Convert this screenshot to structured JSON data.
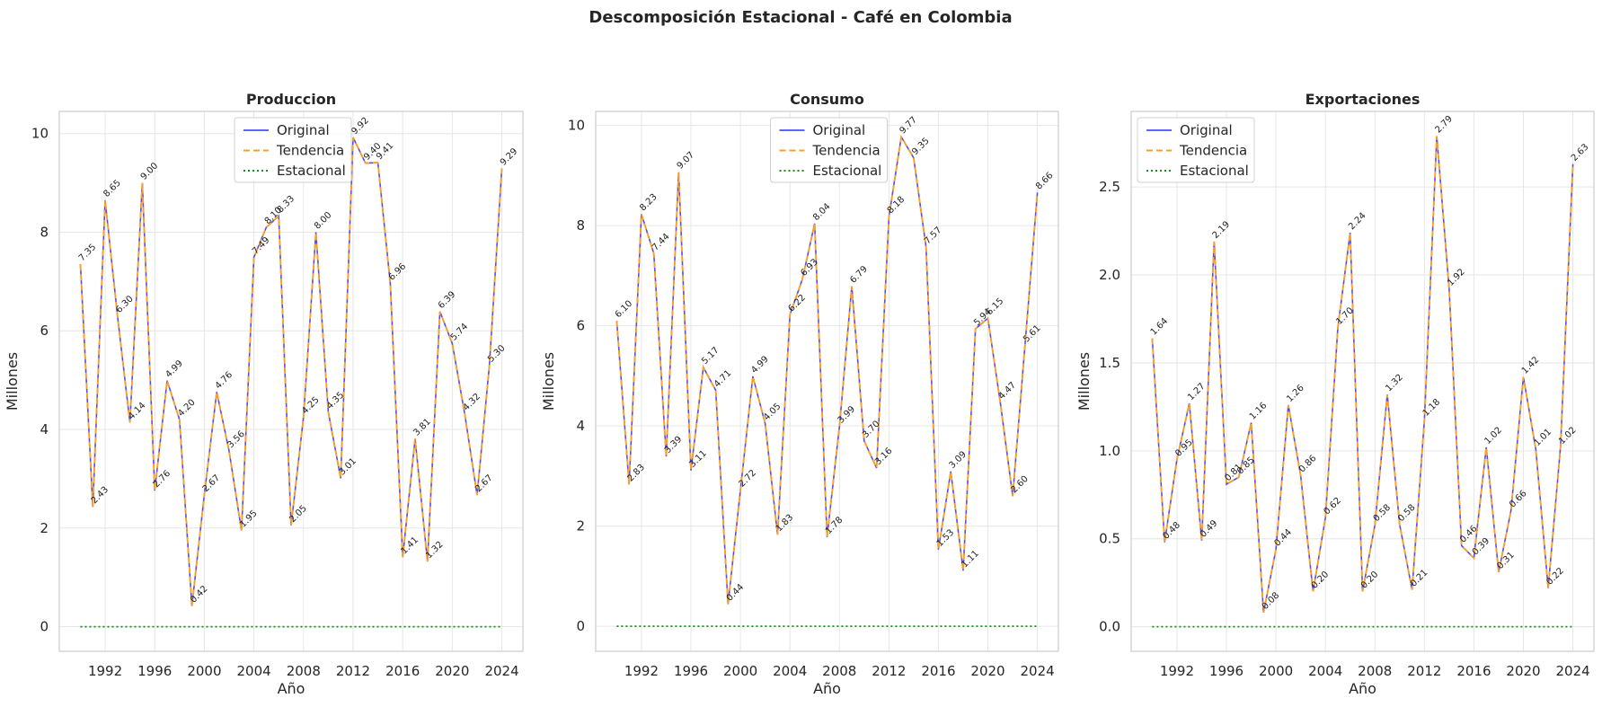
{
  "suptitle": "Descomposición Estacional - Café en Colombia",
  "colors": {
    "original": "#4d4dff",
    "tendencia": "#ff9f1c",
    "estacional": "#1a8c1a",
    "grid": "#e6e6e6",
    "spine": "#cccccc",
    "text": "#262626"
  },
  "chart_data": [
    {
      "type": "line",
      "title": "Produccion",
      "xlabel": "Año",
      "ylabel": "Millones",
      "x": [
        1990,
        1991,
        1992,
        1993,
        1994,
        1995,
        1996,
        1997,
        1998,
        1999,
        2000,
        2001,
        2002,
        2003,
        2004,
        2005,
        2006,
        2007,
        2008,
        2009,
        2010,
        2011,
        2012,
        2013,
        2014,
        2015,
        2016,
        2017,
        2018,
        2019,
        2020,
        2021,
        2022,
        2023,
        2024
      ],
      "xticks": [
        1992,
        1996,
        2000,
        2004,
        2008,
        2012,
        2016,
        2020,
        2024
      ],
      "yticks": [
        0,
        2,
        4,
        6,
        8,
        10
      ],
      "ytick_labels": [
        "0",
        "2",
        "4",
        "6",
        "8",
        "10"
      ],
      "ylim": [
        -0.5,
        10.45
      ],
      "legend": "upper center",
      "series": [
        {
          "name": "Original",
          "values": [
            7.35,
            2.43,
            8.65,
            6.3,
            4.14,
            9.0,
            2.76,
            4.99,
            4.2,
            0.42,
            2.67,
            4.76,
            3.56,
            1.95,
            7.49,
            8.1,
            8.33,
            2.05,
            4.25,
            8.0,
            4.35,
            3.01,
            9.92,
            9.4,
            9.41,
            6.96,
            1.41,
            3.81,
            1.32,
            6.39,
            5.74,
            4.32,
            2.67,
            5.3,
            9.29
          ]
        },
        {
          "name": "Tendencia",
          "values": [
            7.35,
            2.43,
            8.65,
            6.3,
            4.14,
            9.0,
            2.76,
            4.99,
            4.2,
            0.42,
            2.67,
            4.76,
            3.56,
            1.95,
            7.49,
            8.1,
            8.33,
            2.05,
            4.25,
            8.0,
            4.35,
            3.01,
            9.92,
            9.4,
            9.41,
            6.96,
            1.41,
            3.81,
            1.32,
            6.39,
            5.74,
            4.32,
            2.67,
            5.3,
            9.29
          ]
        },
        {
          "name": "Estacional",
          "values": [
            0,
            0,
            0,
            0,
            0,
            0,
            0,
            0,
            0,
            0,
            0,
            0,
            0,
            0,
            0,
            0,
            0,
            0,
            0,
            0,
            0,
            0,
            0,
            0,
            0,
            0,
            0,
            0,
            0,
            0,
            0,
            0,
            0,
            0,
            0
          ]
        }
      ],
      "labels": [
        "7.35",
        "2.43",
        "8.65",
        "6.30",
        "4.14",
        "9.00",
        "2.76",
        "4.99",
        "4.20",
        "0.42",
        "2.67",
        "4.76",
        "3.56",
        "1.95",
        "7.49",
        "8.10",
        "8.33",
        "2.05",
        "4.25",
        "8.00",
        "4.35",
        "3.01",
        "9.92",
        "9.40",
        "9.41",
        "6.96",
        "1.41",
        "3.81",
        "1.32",
        "6.39",
        "5.74",
        "4.32",
        "2.67",
        "5.30",
        "9.29"
      ]
    },
    {
      "type": "line",
      "title": "Consumo",
      "xlabel": "Año",
      "ylabel": "Millones",
      "x": [
        1990,
        1991,
        1992,
        1993,
        1994,
        1995,
        1996,
        1997,
        1998,
        1999,
        2000,
        2001,
        2002,
        2003,
        2004,
        2005,
        2006,
        2007,
        2008,
        2009,
        2010,
        2011,
        2012,
        2013,
        2014,
        2015,
        2016,
        2017,
        2018,
        2019,
        2020,
        2021,
        2022,
        2023,
        2024
      ],
      "xticks": [
        1992,
        1996,
        2000,
        2004,
        2008,
        2012,
        2016,
        2020,
        2024
      ],
      "yticks": [
        0,
        2,
        4,
        6,
        8,
        10
      ],
      "ytick_labels": [
        "0",
        "2",
        "4",
        "6",
        "8",
        "10"
      ],
      "ylim": [
        -0.5,
        10.28
      ],
      "legend": "upper center",
      "series": [
        {
          "name": "Original",
          "values": [
            6.1,
            2.83,
            8.23,
            7.44,
            3.39,
            9.07,
            3.11,
            5.17,
            4.71,
            0.44,
            2.72,
            4.99,
            4.05,
            1.83,
            6.22,
            6.93,
            8.04,
            1.78,
            3.99,
            6.79,
            3.7,
            3.16,
            8.18,
            9.77,
            9.35,
            7.57,
            1.53,
            3.09,
            1.11,
            5.94,
            6.15,
            4.47,
            2.6,
            5.61,
            8.66
          ]
        },
        {
          "name": "Tendencia",
          "values": [
            6.1,
            2.83,
            8.23,
            7.44,
            3.39,
            9.07,
            3.11,
            5.17,
            4.71,
            0.44,
            2.72,
            4.99,
            4.05,
            1.83,
            6.22,
            6.93,
            8.04,
            1.78,
            3.99,
            6.79,
            3.7,
            3.16,
            8.18,
            9.77,
            9.35,
            7.57,
            1.53,
            3.09,
            1.11,
            5.94,
            6.15,
            4.47,
            2.6,
            5.61,
            8.66
          ]
        },
        {
          "name": "Estacional",
          "values": [
            0,
            0,
            0,
            0,
            0,
            0,
            0,
            0,
            0,
            0,
            0,
            0,
            0,
            0,
            0,
            0,
            0,
            0,
            0,
            0,
            0,
            0,
            0,
            0,
            0,
            0,
            0,
            0,
            0,
            0,
            0,
            0,
            0,
            0,
            0
          ]
        }
      ],
      "labels": [
        "6.10",
        "2.83",
        "8.23",
        "7.44",
        "3.39",
        "9.07",
        "3.11",
        "5.17",
        "4.71",
        "0.44",
        "2.72",
        "4.99",
        "4.05",
        "1.83",
        "6.22",
        "6.93",
        "8.04",
        "1.78",
        "3.99",
        "6.79",
        "3.70",
        "3.16",
        "8.18",
        "9.77",
        "9.35",
        "7.57",
        "1.53",
        "3.09",
        "1.11",
        "5.94",
        "6.15",
        "4.47",
        "2.60",
        "5.61",
        "8.66"
      ]
    },
    {
      "type": "line",
      "title": "Exportaciones",
      "xlabel": "Año",
      "ylabel": "Millones",
      "x": [
        1990,
        1991,
        1992,
        1993,
        1994,
        1995,
        1996,
        1997,
        1998,
        1999,
        2000,
        2001,
        2002,
        2003,
        2004,
        2005,
        2006,
        2007,
        2008,
        2009,
        2010,
        2011,
        2012,
        2013,
        2014,
        2015,
        2016,
        2017,
        2018,
        2019,
        2020,
        2021,
        2022,
        2023,
        2024
      ],
      "xticks": [
        1992,
        1996,
        2000,
        2004,
        2008,
        2012,
        2016,
        2020,
        2024
      ],
      "yticks": [
        0,
        0.5,
        1.0,
        1.5,
        2.0,
        2.5
      ],
      "ytick_labels": [
        "0.0",
        "0.5",
        "1.0",
        "1.5",
        "2.0",
        "2.5"
      ],
      "ylim": [
        -0.14,
        2.93
      ],
      "legend": "upper left",
      "series": [
        {
          "name": "Original",
          "values": [
            1.64,
            0.48,
            0.95,
            1.27,
            0.49,
            2.19,
            0.81,
            0.85,
            1.16,
            0.08,
            0.44,
            1.26,
            0.86,
            0.2,
            0.62,
            1.7,
            2.24,
            0.2,
            0.58,
            1.32,
            0.58,
            0.21,
            1.18,
            2.79,
            1.92,
            0.46,
            0.39,
            1.02,
            0.31,
            0.66,
            1.42,
            1.01,
            0.22,
            1.02,
            2.63
          ]
        },
        {
          "name": "Tendencia",
          "values": [
            1.64,
            0.48,
            0.95,
            1.27,
            0.49,
            2.19,
            0.81,
            0.85,
            1.16,
            0.08,
            0.44,
            1.26,
            0.86,
            0.2,
            0.62,
            1.7,
            2.24,
            0.2,
            0.58,
            1.32,
            0.58,
            0.21,
            1.18,
            2.79,
            1.92,
            0.46,
            0.39,
            1.02,
            0.31,
            0.66,
            1.42,
            1.01,
            0.22,
            1.02,
            2.63
          ]
        },
        {
          "name": "Estacional",
          "values": [
            0,
            0,
            0,
            0,
            0,
            0,
            0,
            0,
            0,
            0,
            0,
            0,
            0,
            0,
            0,
            0,
            0,
            0,
            0,
            0,
            0,
            0,
            0,
            0,
            0,
            0,
            0,
            0,
            0,
            0,
            0,
            0,
            0,
            0,
            0
          ]
        }
      ],
      "labels": [
        "1.64",
        "0.48",
        "0.95",
        "1.27",
        "0.49",
        "2.19",
        "0.81",
        "0.85",
        "1.16",
        "0.08",
        "0.44",
        "1.26",
        "0.86",
        "0.20",
        "0.62",
        "1.70",
        "2.24",
        "0.20",
        "0.58",
        "1.32",
        "0.58",
        "0.21",
        "1.18",
        "2.79",
        "1.92",
        "0.46",
        "0.39",
        "1.02",
        "0.31",
        "0.66",
        "1.42",
        "1.01",
        "0.22",
        "1.02",
        "2.63"
      ]
    }
  ]
}
